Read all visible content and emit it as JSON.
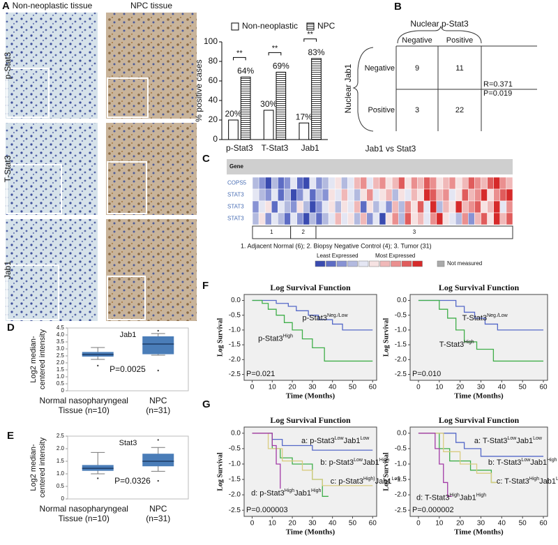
{
  "panel_labels": [
    "A",
    "B",
    "C",
    "D",
    "E",
    "F",
    "G"
  ],
  "panel_a": {
    "columns": [
      "Non-neoplastic tissue",
      "NPC tissue"
    ],
    "rows": [
      "p-Stat3",
      "T-Stat3",
      "Jab1"
    ]
  },
  "panel_b": {
    "title": "Nuclear p-Stat3",
    "columns": [
      "Negative",
      "Positive"
    ],
    "row_title": "Nuclear Jab1",
    "rows": [
      {
        "label": "Negative",
        "cells": [
          "9",
          "11"
        ]
      },
      {
        "label": "Positive",
        "cells": [
          "3",
          "22"
        ]
      }
    ],
    "stats": [
      "R=0.371",
      "P=0.019"
    ]
  },
  "chart_data": [
    {
      "type": "bar",
      "ylabel": "% positive cases",
      "categories": [
        "p-Stat3",
        "T-Stat3",
        "Jab1"
      ],
      "series": [
        {
          "name": "Non-neoplastic",
          "color": "#ffffff",
          "values": [
            20,
            30,
            17
          ],
          "value_labels": [
            "20%",
            "30%",
            "17%"
          ]
        },
        {
          "name": "NPC",
          "color": "#ffffff",
          "hatch": true,
          "values": [
            64,
            69,
            83
          ],
          "value_labels": [
            "64%",
            "69%",
            "83%"
          ]
        }
      ],
      "annotations": [
        "**",
        "**",
        "**"
      ],
      "ylim": [
        0,
        100
      ],
      "yticks": [
        0,
        20,
        40,
        60,
        80,
        100
      ]
    },
    {
      "type": "heatmap",
      "title": "Jab1 vs Stat3",
      "header": "Gene",
      "rows": [
        "COPS5",
        "STAT3",
        "STAT3",
        "STAT3"
      ],
      "values": [
        [
          3,
          2,
          0,
          3,
          1,
          2,
          4,
          1,
          0,
          4,
          2,
          3,
          4,
          5,
          3,
          4,
          6,
          7,
          4,
          6,
          7,
          5,
          6,
          8,
          5,
          7,
          6,
          8,
          7,
          5,
          6,
          7,
          5,
          6,
          8,
          7,
          6,
          8,
          9,
          7,
          6
        ],
        [
          4,
          3,
          2,
          4,
          1,
          3,
          0,
          2,
          4,
          1,
          3,
          2,
          5,
          4,
          6,
          4,
          3,
          5,
          7,
          4,
          5,
          6,
          3,
          5,
          4,
          6,
          5,
          9,
          8,
          6,
          7,
          4,
          5,
          8,
          6,
          7,
          9,
          5,
          7,
          8,
          9
        ],
        [
          2,
          4,
          5,
          1,
          4,
          3,
          2,
          5,
          3,
          0,
          2,
          4,
          5,
          3,
          5,
          4,
          6,
          1,
          5,
          3,
          4,
          2,
          6,
          3,
          7,
          5,
          8,
          4,
          9,
          3,
          6,
          5,
          9,
          6,
          7,
          8,
          5,
          6,
          9,
          4,
          7
        ],
        [
          3,
          5,
          2,
          4,
          3,
          1,
          4,
          2,
          0,
          3,
          1,
          3,
          4,
          6,
          4,
          5,
          3,
          6,
          2,
          4,
          0,
          5,
          7,
          3,
          8,
          5,
          6,
          4,
          7,
          9,
          5,
          4,
          3,
          7,
          2,
          6,
          8,
          5,
          9,
          6,
          8
        ]
      ],
      "scale_colors": [
        "#3a4bb0",
        "#5d6cc4",
        "#8893d4",
        "#b3badf",
        "#e4e6f3",
        "#f6e2e2",
        "#f0b8b8",
        "#ea8f8f",
        "#e05c5c",
        "#d62a2a"
      ],
      "groups": [
        {
          "label": "1",
          "count": 6
        },
        {
          "label": "2",
          "count": 4
        },
        {
          "label": "3",
          "count": 31
        }
      ],
      "caption": "1. Adjacent Normal (6); 2. Biopsy Negative Control (4); 3. Tumor (31)",
      "legend_low": "Least Expressed",
      "legend_high": "Most Expressed",
      "missing_label": "Not measured",
      "missing_color": "#aaaaaa"
    },
    {
      "type": "box",
      "title": "Jab1",
      "ylabel": [
        "Log2 median-",
        "centered intensity"
      ],
      "categories": [
        [
          "Normal nasopharyngeal",
          "Tissue (n=10)"
        ],
        [
          "NPC",
          "(n=31)"
        ]
      ],
      "color": "#4a7db8",
      "boxes": [
        {
          "min": 2.25,
          "q1": 2.45,
          "median": 2.6,
          "q3": 2.78,
          "max": 3.1,
          "outliers": [
            1.8
          ]
        },
        {
          "min": 2.55,
          "q1": 2.62,
          "median": 3.35,
          "q3": 3.9,
          "max": 4.1,
          "outliers": [
            1.45,
            4.3
          ]
        }
      ],
      "annotation": "P=0.0025",
      "ylim": [
        0,
        4.5
      ],
      "yticks": [
        0,
        0.5,
        {
          "value": 1,
          "label": "1.0"
        },
        1.5,
        {
          "value": 2,
          "label": "2.0"
        },
        2.5,
        {
          "value": 3,
          "label": "3.0"
        },
        3.5,
        {
          "value": 4,
          "label": "4.0"
        },
        4.5
      ]
    },
    {
      "type": "box",
      "title": "Stat3",
      "ylabel": [
        "Log2 median-",
        "centered intensity"
      ],
      "categories": [
        [
          "Normal nasopharyngeal",
          "Tissue (n=10)"
        ],
        [
          "NPC",
          "(n=31)"
        ]
      ],
      "color": "#4a7db8",
      "boxes": [
        {
          "min": 1.0,
          "q1": 1.12,
          "median": 1.22,
          "q3": 1.35,
          "max": 1.85,
          "outliers": [
            0.82
          ]
        },
        {
          "min": 1.1,
          "q1": 1.3,
          "median": 1.5,
          "q3": 1.8,
          "max": 2.05,
          "outliers": [
            2.35,
            0.72
          ]
        }
      ],
      "annotation": "P=0.0326",
      "ylim": [
        0,
        2.5
      ],
      "yticks": [
        0,
        0.5,
        {
          "value": 1,
          "label": "1.0"
        },
        1.5,
        {
          "value": 2,
          "label": "2.0"
        },
        2.5
      ]
    },
    {
      "type": "line",
      "title": "Log Survival Function",
      "xlabel": "Time (Months)",
      "ylabel": "Log Survival",
      "annotation": "P=0.021",
      "xlim": [
        -4,
        62
      ],
      "ylim": [
        -2.7,
        0.2
      ],
      "xticks": [
        0,
        10,
        20,
        30,
        40,
        50,
        60
      ],
      "yticks": [
        {
          "value": 0,
          "label": "0.0"
        },
        -0.5,
        {
          "value": -1,
          "label": "-1.0"
        },
        -1.5,
        {
          "value": -2,
          "label": "-2.0"
        },
        -2.5
      ],
      "series": [
        {
          "name_parts": [
            {
              "t": "p-Stat3"
            },
            {
              "t": "Neg./Low",
              "sup": true
            }
          ],
          "color": "#5468c8",
          "x": [
            0,
            12,
            12,
            18,
            18,
            22,
            22,
            28,
            28,
            33,
            33,
            40,
            40,
            45,
            45,
            60
          ],
          "values": [
            0,
            0,
            -0.1,
            -0.1,
            -0.2,
            -0.2,
            -0.35,
            -0.35,
            -0.5,
            -0.5,
            -0.65,
            -0.65,
            -0.8,
            -0.8,
            -1.0,
            -1.0
          ]
        },
        {
          "name_parts": [
            {
              "t": "p-Stat3"
            },
            {
              "t": "High",
              "sup": true
            }
          ],
          "color": "#3fae49",
          "x": [
            0,
            5,
            5,
            8,
            8,
            12,
            12,
            16,
            16,
            20,
            20,
            25,
            25,
            30,
            30,
            36,
            36,
            60
          ],
          "values": [
            0,
            0,
            -0.1,
            -0.1,
            -0.3,
            -0.3,
            -0.5,
            -0.5,
            -0.75,
            -0.75,
            -1.0,
            -1.0,
            -1.3,
            -1.3,
            -1.6,
            -1.6,
            -2.05,
            -2.05
          ]
        }
      ]
    },
    {
      "type": "line",
      "title": "Log Survival Function",
      "xlabel": "Time (Months)",
      "ylabel": "Log Survival",
      "annotation": "P=0.010",
      "xlim": [
        -4,
        62
      ],
      "ylim": [
        -2.7,
        0.2
      ],
      "xticks": [
        0,
        10,
        20,
        30,
        40,
        50,
        60
      ],
      "yticks": [
        {
          "value": 0,
          "label": "0.0"
        },
        -0.5,
        {
          "value": -1,
          "label": "-1.0"
        },
        -1.5,
        {
          "value": -2,
          "label": "-2.0"
        },
        -2.5
      ],
      "series": [
        {
          "name_parts": [
            {
              "t": "T-Stat3"
            },
            {
              "t": "Neg./Low",
              "sup": true
            }
          ],
          "color": "#5468c8",
          "x": [
            0,
            18,
            18,
            22,
            22,
            27,
            27,
            32,
            32,
            38,
            38,
            60
          ],
          "values": [
            0,
            0,
            -0.2,
            -0.2,
            -0.4,
            -0.4,
            -0.6,
            -0.6,
            -0.8,
            -0.8,
            -1.0,
            -1.0
          ]
        },
        {
          "name_parts": [
            {
              "t": "T-Stat3"
            },
            {
              "t": "High",
              "sup": true
            }
          ],
          "color": "#3fae49",
          "x": [
            0,
            10,
            10,
            14,
            14,
            18,
            18,
            22,
            22,
            28,
            28,
            36,
            36,
            60
          ],
          "values": [
            0,
            0,
            -0.3,
            -0.3,
            -0.6,
            -0.6,
            -1.0,
            -1.0,
            -1.4,
            -1.4,
            -1.65,
            -1.65,
            -2.05,
            -2.05
          ]
        }
      ]
    },
    {
      "type": "line",
      "title": "Log Survival Function",
      "xlabel": "Time (Months)",
      "ylabel": "Log Survival",
      "annotation": "P=0.000003",
      "xlim": [
        -4,
        62
      ],
      "ylim": [
        -2.7,
        0.2
      ],
      "xticks": [
        0,
        10,
        20,
        30,
        40,
        50,
        60
      ],
      "yticks": [
        {
          "value": 0,
          "label": "0.0"
        },
        -0.5,
        {
          "value": -1,
          "label": "-1.0"
        },
        -1.5,
        {
          "value": -2,
          "label": "-2.0"
        },
        -2.5
      ],
      "series": [
        {
          "name_parts": [
            {
              "t": "a: p-Stat3"
            },
            {
              "t": "Low",
              "sup": true
            },
            {
              "t": "Jab1"
            },
            {
              "t": "Low",
              "sup": true
            }
          ],
          "color": "#5468c8",
          "x": [
            0,
            10,
            10,
            15,
            15,
            30,
            30,
            60
          ],
          "values": [
            0,
            0,
            -0.2,
            -0.2,
            -0.4,
            -0.4,
            -0.55,
            -0.55
          ]
        },
        {
          "name_parts": [
            {
              "t": "b: p-Stat3"
            },
            {
              "t": "Low",
              "sup": true
            },
            {
              "t": "Jab1"
            },
            {
              "t": "High",
              "sup": true
            }
          ],
          "color": "#3fae49",
          "x": [
            0,
            10,
            10,
            14,
            14,
            20,
            20,
            30,
            30,
            35,
            35,
            38
          ],
          "values": [
            0,
            0,
            -0.5,
            -0.5,
            -0.8,
            -0.8,
            -1.0,
            -1.0,
            -1.5,
            -1.5,
            -2.05,
            -2.05
          ]
        },
        {
          "name_parts": [
            {
              "t": "c: p-Stat3"
            },
            {
              "t": "High)",
              "sup": true
            },
            {
              "t": "Jab1"
            },
            {
              "t": "Low",
              "sup": true
            }
          ],
          "color": "#d9cc80",
          "x": [
            0,
            8,
            8,
            15,
            15,
            25,
            25,
            30,
            30,
            35,
            35,
            60
          ],
          "values": [
            0,
            0,
            -0.5,
            -0.5,
            -0.9,
            -0.9,
            -1.2,
            -1.2,
            -1.5,
            -1.5,
            -1.7,
            -1.7
          ]
        },
        {
          "name_parts": [
            {
              "t": "d: p-Stat3"
            },
            {
              "t": "High",
              "sup": true
            },
            {
              "t": "Jab1"
            },
            {
              "t": "High",
              "sup": true
            }
          ],
          "color": "#a23aa6",
          "x": [
            0,
            10,
            10,
            12,
            12,
            14,
            14
          ],
          "values": [
            0,
            0,
            -0.4,
            -0.4,
            -1.0,
            -1.0,
            -1.8
          ]
        }
      ]
    },
    {
      "type": "line",
      "title": "Log Survival Function",
      "xlabel": "Time (Months)",
      "ylabel": "Log Survival",
      "annotation": "P=0.000002",
      "xlim": [
        -4,
        62
      ],
      "ylim": [
        -2.7,
        0.2
      ],
      "xticks": [
        0,
        10,
        20,
        30,
        40,
        50,
        60
      ],
      "yticks": [
        {
          "value": 0,
          "label": "0.0"
        },
        -0.5,
        {
          "value": -1,
          "label": "-1.0"
        },
        -1.5,
        {
          "value": -2,
          "label": "-2.0"
        },
        -2.5
      ],
      "series": [
        {
          "name_parts": [
            {
              "t": "a: T-Stat3"
            },
            {
              "t": "Low",
              "sup": true
            },
            {
              "t": "Jab1"
            },
            {
              "t": "Low",
              "sup": true
            }
          ],
          "color": "#5468c8",
          "x": [
            0,
            18,
            18,
            22,
            22,
            30,
            30,
            60
          ],
          "values": [
            0,
            0,
            -0.3,
            -0.3,
            -0.5,
            -0.5,
            -0.75,
            -0.75
          ]
        },
        {
          "name_parts": [
            {
              "t": "b: T-Stat3"
            },
            {
              "t": "Low",
              "sup": true
            },
            {
              "t": "Jab1"
            },
            {
              "t": "High",
              "sup": true
            }
          ],
          "color": "#3fae49",
          "x": [
            0,
            10,
            10,
            15,
            15,
            25,
            25,
            35,
            35,
            37
          ],
          "values": [
            0,
            0,
            -0.5,
            -0.5,
            -0.9,
            -0.9,
            -1.2,
            -1.2,
            -1.6,
            -1.6
          ]
        },
        {
          "name_parts": [
            {
              "t": "c: T-Stat3"
            },
            {
              "t": "High",
              "sup": true
            },
            {
              "t": "Jab1"
            },
            {
              "t": "Low",
              "sup": true
            }
          ],
          "color": "#d9cc80",
          "x": [
            0,
            12,
            12,
            20,
            20,
            28,
            28,
            35,
            35,
            38
          ],
          "values": [
            0,
            0,
            -0.6,
            -0.6,
            -1.0,
            -1.0,
            -1.3,
            -1.3,
            -1.6,
            -1.6
          ]
        },
        {
          "name_parts": [
            {
              "t": "d: T-Stat3"
            },
            {
              "t": "High",
              "sup": true
            },
            {
              "t": "Jab1"
            },
            {
              "t": "High",
              "sup": true
            }
          ],
          "color": "#a23aa6",
          "x": [
            0,
            8,
            8,
            10,
            10,
            12,
            12,
            14,
            14,
            16
          ],
          "values": [
            0,
            0,
            -0.5,
            -0.5,
            -1.0,
            -1.0,
            -1.6,
            -1.6,
            -2.05,
            -2.05
          ]
        }
      ]
    }
  ]
}
